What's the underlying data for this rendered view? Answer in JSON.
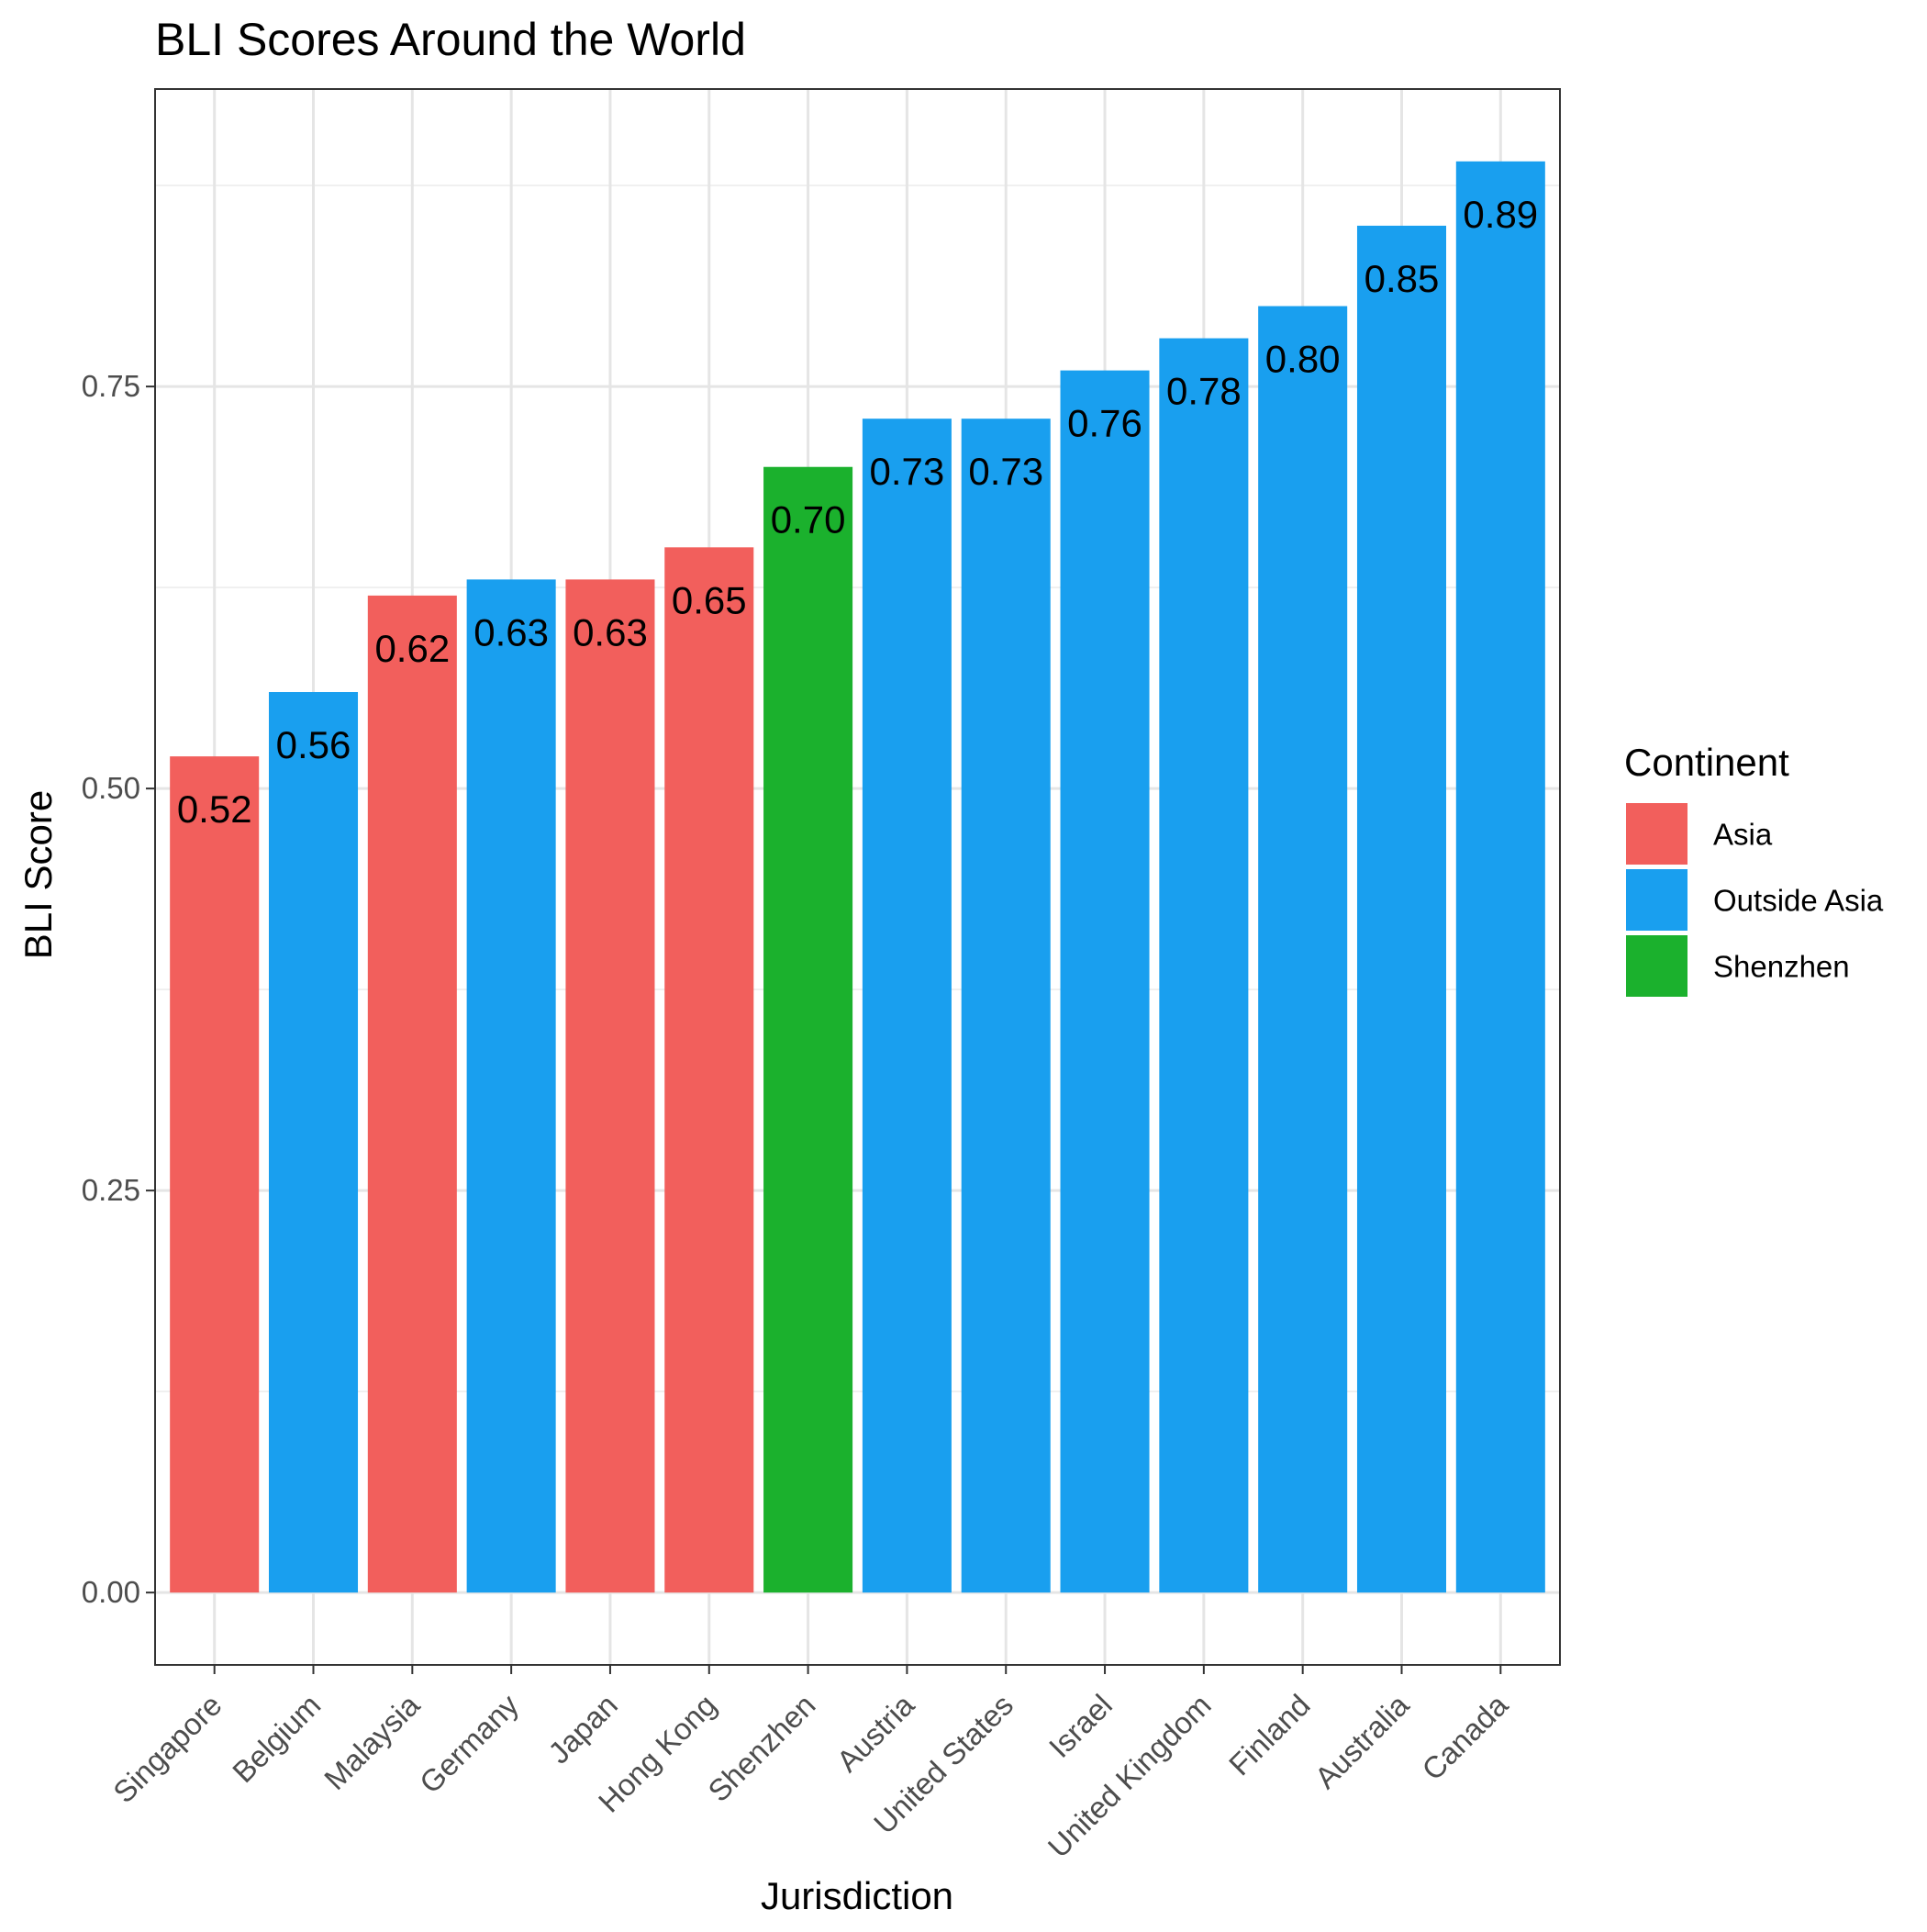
{
  "chart_data": {
    "type": "bar",
    "title": "BLI Scores Around the World",
    "xlabel": "Jurisdiction",
    "ylabel": "BLI Score",
    "ylim": [
      -0.045,
      0.935
    ],
    "yticks": [
      0,
      0.25,
      0.5,
      0.75
    ],
    "ytick_labels": [
      "0.00",
      "0.25",
      "0.50",
      "0.75"
    ],
    "grid": true,
    "legend_title": "Continent",
    "legend_position": "right",
    "groups": [
      {
        "name": "Asia",
        "color": "#F25F5C"
      },
      {
        "name": "Outside Asia",
        "color": "#199FEF"
      },
      {
        "name": "Shenzhen",
        "color": "#1BB12D"
      }
    ],
    "categories": [
      "Singapore",
      "Belgium",
      "Malaysia",
      "Germany",
      "Japan",
      "Hong Kong",
      "Shenzhen",
      "Austria",
      "United States",
      "Israel",
      "United Kingdom",
      "Finland",
      "Australia",
      "Canada"
    ],
    "values": [
      0.52,
      0.56,
      0.62,
      0.63,
      0.63,
      0.65,
      0.7,
      0.73,
      0.73,
      0.76,
      0.78,
      0.8,
      0.85,
      0.89
    ],
    "value_labels": [
      "0.52",
      "0.56",
      "0.62",
      "0.63",
      "0.63",
      "0.65",
      "0.70",
      "0.73",
      "0.73",
      "0.76",
      "0.78",
      "0.80",
      "0.85",
      "0.89"
    ],
    "bar_group": [
      "Asia",
      "Outside Asia",
      "Asia",
      "Outside Asia",
      "Asia",
      "Asia",
      "Shenzhen",
      "Outside Asia",
      "Outside Asia",
      "Outside Asia",
      "Outside Asia",
      "Outside Asia",
      "Outside Asia",
      "Outside Asia"
    ]
  }
}
